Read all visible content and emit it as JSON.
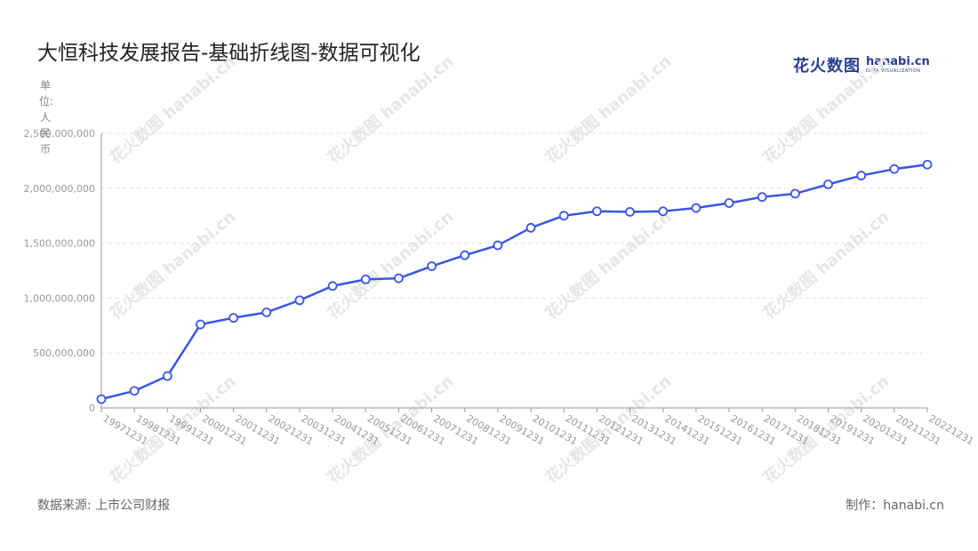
{
  "title": "大恒科技发展报告-基础折线图-数据可视化",
  "logo": {
    "cn": "花火数图",
    "en": "hanabi.cn",
    "sub": "DATA VISUALIZATION"
  },
  "unit_label": "单位:人民币",
  "source": "数据来源: 上市公司财报",
  "credit": "制作：hanabi.cn",
  "watermark": "花火数图 hanabi.cn",
  "colors": {
    "line": "#3b55e6",
    "grid": "#e0e0e0",
    "axis": "#999999",
    "text": "#999999"
  },
  "chart_data": {
    "type": "line",
    "title": "大恒科技发展报告-基础折线图-数据可视化",
    "ylabel": "单位:人民币",
    "ylim": [
      0,
      2500000000
    ],
    "yticks": [
      0,
      500000000,
      1000000000,
      1500000000,
      2000000000,
      2500000000
    ],
    "ytick_labels": [
      "0",
      "500,000,000",
      "1,000,000,000",
      "1,500,000,000",
      "2,000,000,000",
      "2,500,000,000"
    ],
    "grid": "horizontal dashed",
    "categories": [
      "19971231",
      "19981231",
      "19991231",
      "20001231",
      "20011231",
      "20021231",
      "20031231",
      "20041231",
      "20051231",
      "20061231",
      "20071231",
      "20081231",
      "20091231",
      "20101231",
      "20111231",
      "20121231",
      "20131231",
      "20141231",
      "20151231",
      "20161231",
      "20171231",
      "20181231",
      "20191231",
      "20201231",
      "20211231",
      "20221231"
    ],
    "values": [
      80000000,
      155000000,
      290000000,
      760000000,
      820000000,
      870000000,
      980000000,
      1110000000,
      1170000000,
      1180000000,
      1290000000,
      1390000000,
      1480000000,
      1640000000,
      1750000000,
      1790000000,
      1785000000,
      1790000000,
      1820000000,
      1865000000,
      1920000000,
      1950000000,
      2035000000,
      2115000000,
      2175000000,
      2215000000
    ]
  }
}
